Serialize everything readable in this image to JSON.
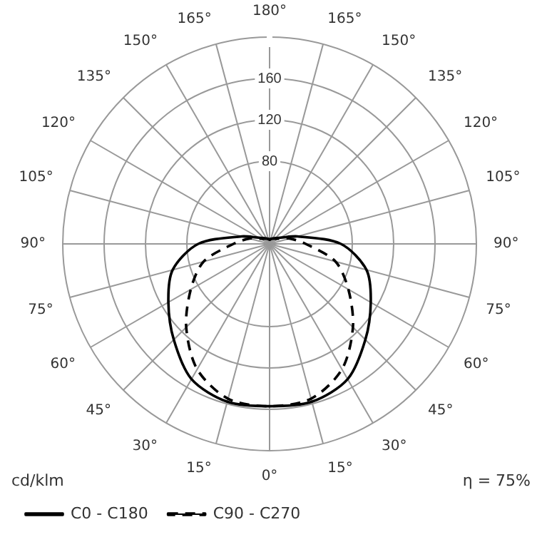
{
  "chart_data": {
    "type": "radar",
    "ylabel": "cd/klm",
    "annotations": [
      "η = 75%"
    ],
    "categories": [
      "180°",
      "165°",
      "150°",
      "135°",
      "120°",
      "105°",
      "90°",
      "75°",
      "60°",
      "45°",
      "30°",
      "15°",
      "0°",
      "15°",
      "30°",
      "45°",
      "60°",
      "75°",
      "90°",
      "105°",
      "120°",
      "135°",
      "150°",
      "165°"
    ],
    "series": [
      {
        "name": "C0 - C180",
        "color": "#000000",
        "line_style": "solid",
        "values": [
          4,
          5,
          6,
          8,
          12,
          28,
          69,
          97,
          113,
          131,
          151,
          158,
          157,
          158,
          151,
          131,
          113,
          97,
          69,
          28,
          12,
          8,
          6,
          5
        ]
      },
      {
        "name": "C90 - C270",
        "color": "#000000",
        "line_style": "dashed",
        "values": [
          4,
          5,
          6,
          7,
          10,
          20,
          35,
          66,
          88,
          114,
          140,
          155,
          157,
          155,
          140,
          114,
          88,
          66,
          35,
          20,
          10,
          7,
          6,
          5
        ]
      }
    ],
    "ylim": [
      0,
      200
    ],
    "yticks": [
      80,
      120,
      160
    ],
    "grid": true,
    "legend": "bottom left",
    "marker": "none"
  }
}
